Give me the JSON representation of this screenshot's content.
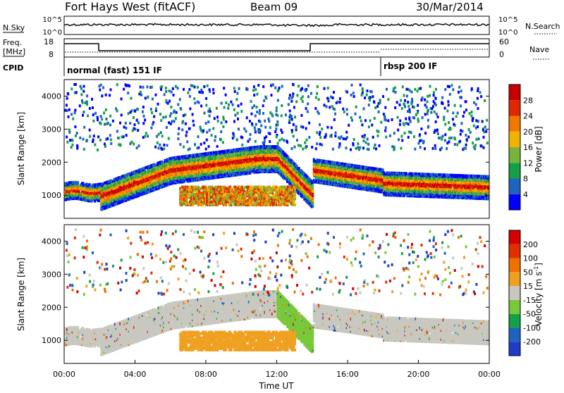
{
  "header": {
    "station": "Fort Hays West (fitACF)",
    "beam": "Beam 09",
    "date": "30/Mar/2014"
  },
  "top_panels": {
    "nsky_label": "N.Sky",
    "nsky_ticks": [
      "10^5",
      "10^0"
    ],
    "nsearch_label": "N.Search",
    "nsearch_ticks": [
      "10^5",
      "10^0"
    ],
    "freq_label_line1": "Freq.",
    "freq_label_line2": "[MHz]",
    "freq_ticks": [
      "18",
      "8"
    ],
    "nave_label": "Nave",
    "nave_ticks": [
      "60",
      "0"
    ],
    "cpid_label": "CPID",
    "cpid_mode_1": "normal (fast) 151 IF",
    "cpid_mode_2": "rbsp 200 IF"
  },
  "chart_data": [
    {
      "type": "heatmap",
      "title": "",
      "ylabel": "Slant Range [km]",
      "y_ticks": [
        1000,
        2000,
        3000,
        4000
      ],
      "ylim": [
        300,
        4500
      ],
      "xlim_hours": [
        0,
        24
      ],
      "colorbar_label": "Power [dB]",
      "colorbar_ticks": [
        "28",
        "24",
        "20",
        "16",
        "12",
        "8",
        "4"
      ],
      "colors": [
        "#0000ff",
        "#1e64be",
        "#14a046",
        "#78b43c",
        "#f0b400",
        "#f07800",
        "#e02800",
        "#c80000"
      ],
      "description_regions": [
        {
          "label": "main band",
          "range_km": [
            1000,
            2400
          ]
        },
        {
          "label": "lower arc",
          "range_km": [
            750,
            1300
          ]
        }
      ]
    },
    {
      "type": "heatmap",
      "title": "",
      "ylabel": "Slant Range [km]",
      "y_ticks": [
        1000,
        2000,
        3000,
        4000
      ],
      "ylim": [
        300,
        4500
      ],
      "xlim_hours": [
        0,
        24
      ],
      "colorbar_label": "Velocity [m s^-1]",
      "colorbar_label_main": "Velocity [m s",
      "colorbar_label_sup": "-1",
      "colorbar_label_end": "]",
      "colorbar_ticks": [
        "200",
        "100",
        "50",
        "15",
        "-15",
        "-50",
        "-100",
        "-200"
      ],
      "colors": [
        "#1e3cc8",
        "#1e64be",
        "#14a046",
        "#78c83c",
        "#c8c8c0",
        "#f0a020",
        "#f07000",
        "#e03000",
        "#d20000"
      ]
    }
  ],
  "x_axis": {
    "ticks": [
      "00:00",
      "04:00",
      "08:00",
      "12:00",
      "16:00",
      "20:00",
      "00:00"
    ],
    "label": "Time UT"
  }
}
